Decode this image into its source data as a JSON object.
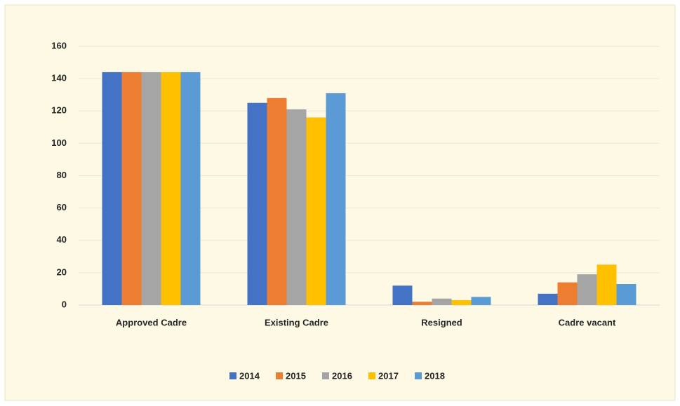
{
  "chart_data": {
    "type": "bar",
    "categories": [
      "Approved Cadre",
      "Existing Cadre",
      "Resigned",
      "Cadre vacant"
    ],
    "series": [
      {
        "name": "2014",
        "color": "#4472c4",
        "values": [
          144,
          125,
          12,
          7
        ]
      },
      {
        "name": "2015",
        "color": "#ed7d31",
        "values": [
          144,
          128,
          2,
          14
        ]
      },
      {
        "name": "2016",
        "color": "#a5a5a5",
        "values": [
          144,
          121,
          4,
          19
        ]
      },
      {
        "name": "2017",
        "color": "#ffc000",
        "values": [
          144,
          116,
          3,
          25
        ]
      },
      {
        "name": "2018",
        "color": "#5b9bd5",
        "values": [
          144,
          131,
          5,
          13
        ]
      }
    ],
    "ylim": [
      0,
      160
    ],
    "yticks": [
      0,
      20,
      40,
      60,
      80,
      100,
      120,
      140,
      160
    ],
    "grid": true,
    "legend": "bottom"
  }
}
